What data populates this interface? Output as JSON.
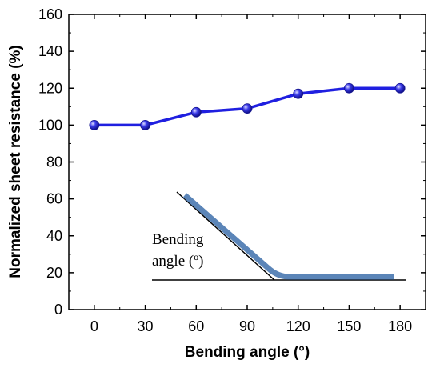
{
  "chart_data": {
    "type": "line",
    "title": "",
    "xlabel": "Bending angle (°)",
    "ylabel": "Normalized sheet resistance (%)",
    "x": [
      0,
      30,
      60,
      90,
      120,
      150,
      180
    ],
    "series": [
      {
        "values": [
          100,
          100,
          107,
          109,
          117,
          120,
          120
        ]
      }
    ],
    "xlim": [
      -15,
      195
    ],
    "ylim": [
      0,
      160
    ],
    "xticks": [
      0,
      30,
      60,
      90,
      120,
      150,
      180
    ],
    "yticks": [
      0,
      20,
      40,
      60,
      80,
      100,
      120,
      140,
      160
    ],
    "grid": false,
    "colors": {
      "series": "#1f1fe0",
      "marker": "#2a2ad8",
      "inset_strip": "#5b85b8",
      "axis": "#000000"
    },
    "inset": {
      "label_line1": "Bending",
      "label_line2": "angle (º)"
    }
  }
}
